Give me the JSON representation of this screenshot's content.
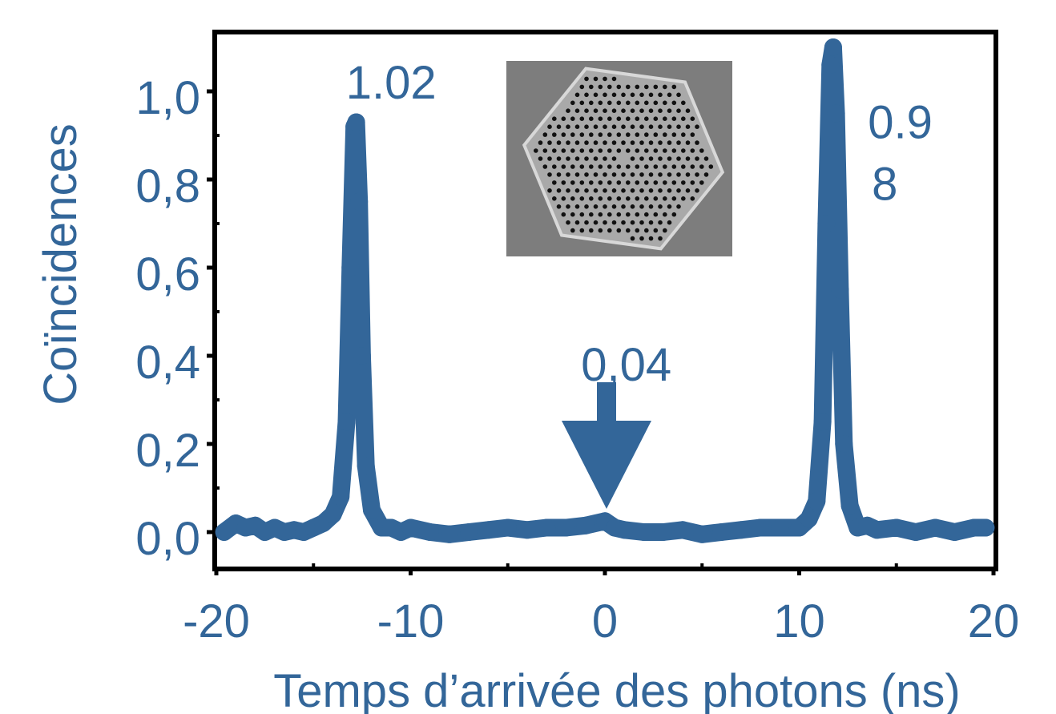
{
  "colors": {
    "series": "#336699",
    "axis": "#000000",
    "text": "#336699",
    "inset_bg": "#7d7d7d",
    "inset_crystal": "#a9a9a9",
    "inset_hole": "#111111"
  },
  "chart_data": {
    "type": "line",
    "title": "",
    "xlabel": "Temps d’arrivée des photons (ns)",
    "ylabel": "Coïncidences",
    "xlim": [
      -20,
      20
    ],
    "ylim": [
      -0.06,
      1.13
    ],
    "x_ticks": [
      -20,
      -10,
      0,
      10,
      20
    ],
    "x_tick_labels": [
      "-20",
      "-10",
      "0",
      "10",
      "20"
    ],
    "y_ticks": [
      0.0,
      0.2,
      0.4,
      0.6,
      0.8,
      1.0
    ],
    "y_tick_labels": [
      "0,0",
      "0,2",
      "0,4",
      "0,6",
      "0,8",
      "1,0"
    ],
    "grid": false,
    "series": [
      {
        "values": [
          [
            -19.6,
            0.0
          ],
          [
            -19.0,
            0.02
          ],
          [
            -18.5,
            0.01
          ],
          [
            -18.0,
            0.015
          ],
          [
            -17.5,
            0.0
          ],
          [
            -17.0,
            0.01
          ],
          [
            -16.5,
            0.0
          ],
          [
            -16.0,
            0.005
          ],
          [
            -15.5,
            0.0
          ],
          [
            -15.0,
            0.01
          ],
          [
            -14.5,
            0.02
          ],
          [
            -14.0,
            0.04
          ],
          [
            -13.6,
            0.08
          ],
          [
            -13.3,
            0.25
          ],
          [
            -13.1,
            0.6
          ],
          [
            -12.9,
            0.92
          ],
          [
            -12.8,
            0.93
          ],
          [
            -12.65,
            0.75
          ],
          [
            -12.5,
            0.4
          ],
          [
            -12.3,
            0.15
          ],
          [
            -12.0,
            0.05
          ],
          [
            -11.5,
            0.01
          ],
          [
            -11.0,
            0.01
          ],
          [
            -10.5,
            0.0
          ],
          [
            -10.0,
            0.01
          ],
          [
            -9.0,
            0.0
          ],
          [
            -8.0,
            -0.005
          ],
          [
            -7.0,
            0.0
          ],
          [
            -6.0,
            0.005
          ],
          [
            -5.0,
            0.01
          ],
          [
            -4.0,
            0.005
          ],
          [
            -3.0,
            0.01
          ],
          [
            -2.0,
            0.01
          ],
          [
            -1.0,
            0.015
          ],
          [
            0.0,
            0.025
          ],
          [
            0.5,
            0.01
          ],
          [
            1.0,
            0.005
          ],
          [
            2.0,
            0.0
          ],
          [
            3.0,
            0.0
          ],
          [
            4.0,
            0.005
          ],
          [
            5.0,
            -0.005
          ],
          [
            6.0,
            0.0
          ],
          [
            7.0,
            0.005
          ],
          [
            8.0,
            0.01
          ],
          [
            9.0,
            0.01
          ],
          [
            10.0,
            0.01
          ],
          [
            10.5,
            0.03
          ],
          [
            10.9,
            0.07
          ],
          [
            11.2,
            0.25
          ],
          [
            11.4,
            0.7
          ],
          [
            11.6,
            1.06
          ],
          [
            11.75,
            1.1
          ],
          [
            11.9,
            0.95
          ],
          [
            12.1,
            0.55
          ],
          [
            12.3,
            0.2
          ],
          [
            12.6,
            0.06
          ],
          [
            13.0,
            0.01
          ],
          [
            13.5,
            0.015
          ],
          [
            14.0,
            0.005
          ],
          [
            15.0,
            0.01
          ],
          [
            16.0,
            0.0
          ],
          [
            17.0,
            0.01
          ],
          [
            18.0,
            0.0
          ],
          [
            19.0,
            0.01
          ],
          [
            19.6,
            0.01
          ]
        ]
      }
    ],
    "annotations": [
      {
        "text": "1.02",
        "x": -11.0,
        "y": 1.02
      },
      {
        "text": "0.9",
        "x": 15.2,
        "y": 0.93
      },
      {
        "text": "8",
        "x": 14.4,
        "y": 0.79
      },
      {
        "text": "0,04",
        "x": 1.1,
        "y": 0.38
      }
    ],
    "arrow": {
      "x": 0.0,
      "y_from": 0.38,
      "y_to": 0.06
    }
  },
  "inset": {
    "description_name": "photonic-crystal-micrograph"
  }
}
